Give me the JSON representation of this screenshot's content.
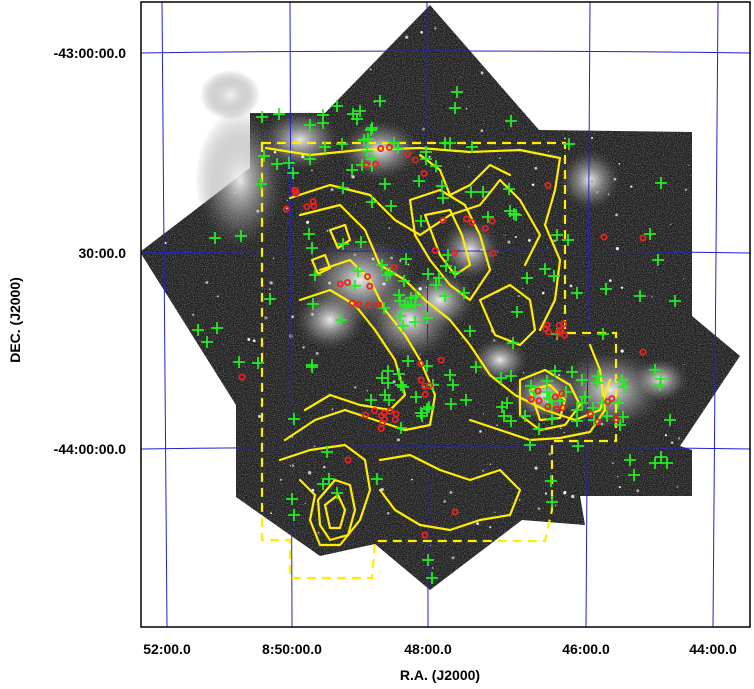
{
  "figure": {
    "colors": {
      "frame": "#000000",
      "grid": "#2222cc",
      "contour": "#ffee00",
      "boundary": "#ffee00",
      "crosses": "#22ee22",
      "dots": "#ee2222",
      "image_background": "#1c1c1c"
    }
  },
  "axes": {
    "xlabel": "R.A. (J2000)",
    "ylabel": "DEC. (J2000)",
    "x_ticks": [
      "52:00.0",
      "8:50:00.0",
      "48:00.0",
      "46:00.0",
      "44:00.0"
    ],
    "y_ticks": [
      "-43:00:00.0",
      "30:00.0",
      "-44:00:00.0"
    ]
  }
}
